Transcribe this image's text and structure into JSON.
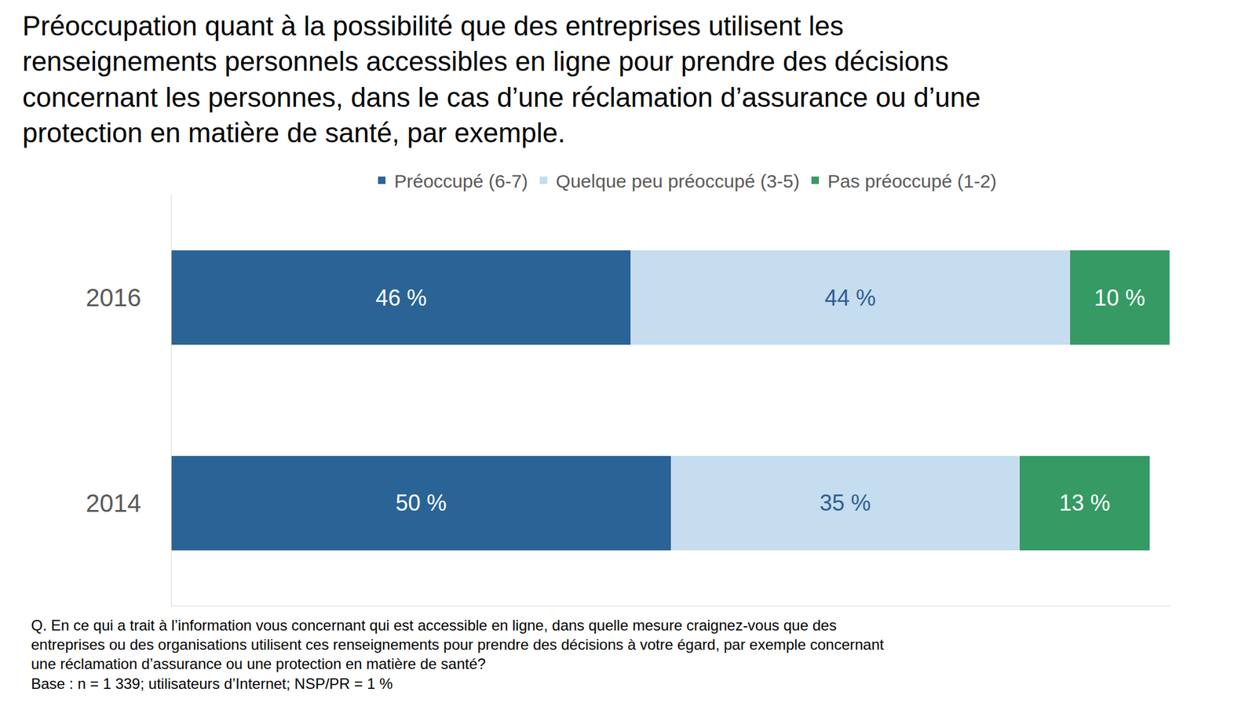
{
  "chart_data": {
    "type": "bar",
    "title": "Préoccupation quant à la possibilité que des entreprises utilisent les\nrenseignements personnels accessibles en ligne pour prendre des décisions\nconcernant les personnes, dans le cas d’une réclamation d’assurance ou d’une\nprotection en matière de santé, par exemple.",
    "orientation": "horizontal",
    "stacked": true,
    "data_labels": true,
    "tick_labels": "y",
    "grid": false,
    "legend": "top",
    "categories": [
      "2016",
      "2014"
    ],
    "xlim": [
      0,
      100
    ],
    "xticks": [],
    "series": [
      {
        "name": "Préoccupé (6-7)",
        "color": "#2A6496",
        "values": [
          46,
          50
        ],
        "value_labels": [
          "46 %",
          "50 %"
        ]
      },
      {
        "name": "Quelque peu préoccupé (3-5)",
        "color": "#C6DCEF",
        "values": [
          44,
          35
        ],
        "value_labels": [
          "44 %",
          "35 %"
        ]
      },
      {
        "name": "Pas préoccupé (1-2)",
        "color": "#359A64",
        "values": [
          10,
          13
        ],
        "value_labels": [
          "10 %",
          "13 %"
        ]
      }
    ],
    "annotations": [
      "Q. En ce qui a trait à l’information vous concernant qui est accessible en ligne, dans quelle mesure craignez-vous que des\nentreprises ou des organisations utilisent ces renseignements pour prendre des décisions à votre égard, par exemple concernant\nune réclamation d’assurance ou une protection en matière de santé?\nBase : n = 1 339; utilisateurs d’Internet; NSP/PR = 1 %"
    ]
  }
}
